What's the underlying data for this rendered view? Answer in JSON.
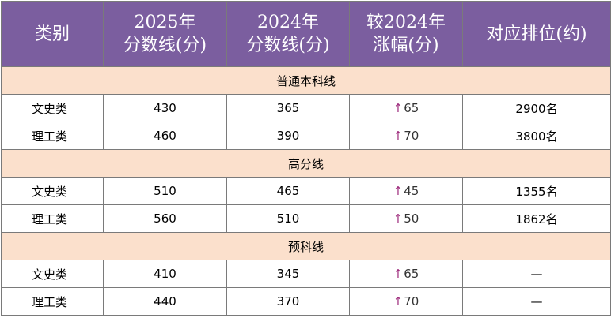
{
  "header": {
    "category": "类别",
    "score_2025_line1": "2025年",
    "score_2025_line2": "分数线(分)",
    "score_2024_line1": "2024年",
    "score_2024_line2": "分数线(分)",
    "change_line1": "较2024年",
    "change_line2": "涨幅(分)",
    "rank": "对应排位(约)"
  },
  "sections": [
    {
      "title": "普通本科线",
      "rows": [
        {
          "category": "文史类",
          "score_2025": "430",
          "score_2024": "365",
          "change_arrow": "↑",
          "change": "65",
          "arrow_color": "#a0307f",
          "rank": "2900名"
        },
        {
          "category": "理工类",
          "score_2025": "460",
          "score_2024": "390",
          "change_arrow": "↑",
          "change": "70",
          "arrow_color": "#a0307f",
          "rank": "3800名"
        }
      ]
    },
    {
      "title": "高分线",
      "rows": [
        {
          "category": "文史类",
          "score_2025": "510",
          "score_2024": "465",
          "change_arrow": "↑",
          "change": "45",
          "arrow_color": "#a0307f",
          "rank": "1355名"
        },
        {
          "category": "理工类",
          "score_2025": "560",
          "score_2024": "510",
          "change_arrow": "↑",
          "change": "50",
          "arrow_color": "#a0307f",
          "rank": "1862名"
        }
      ]
    },
    {
      "title": "预科线",
      "rows": [
        {
          "category": "文史类",
          "score_2025": "410",
          "score_2024": "345",
          "change_arrow": "↑",
          "change": "65",
          "arrow_color": "#a0307f",
          "rank": "—"
        },
        {
          "category": "理工类",
          "score_2025": "440",
          "score_2024": "370",
          "change_arrow": "↑",
          "change": "70",
          "arrow_color": "#a0307f",
          "rank": "—"
        }
      ]
    }
  ]
}
